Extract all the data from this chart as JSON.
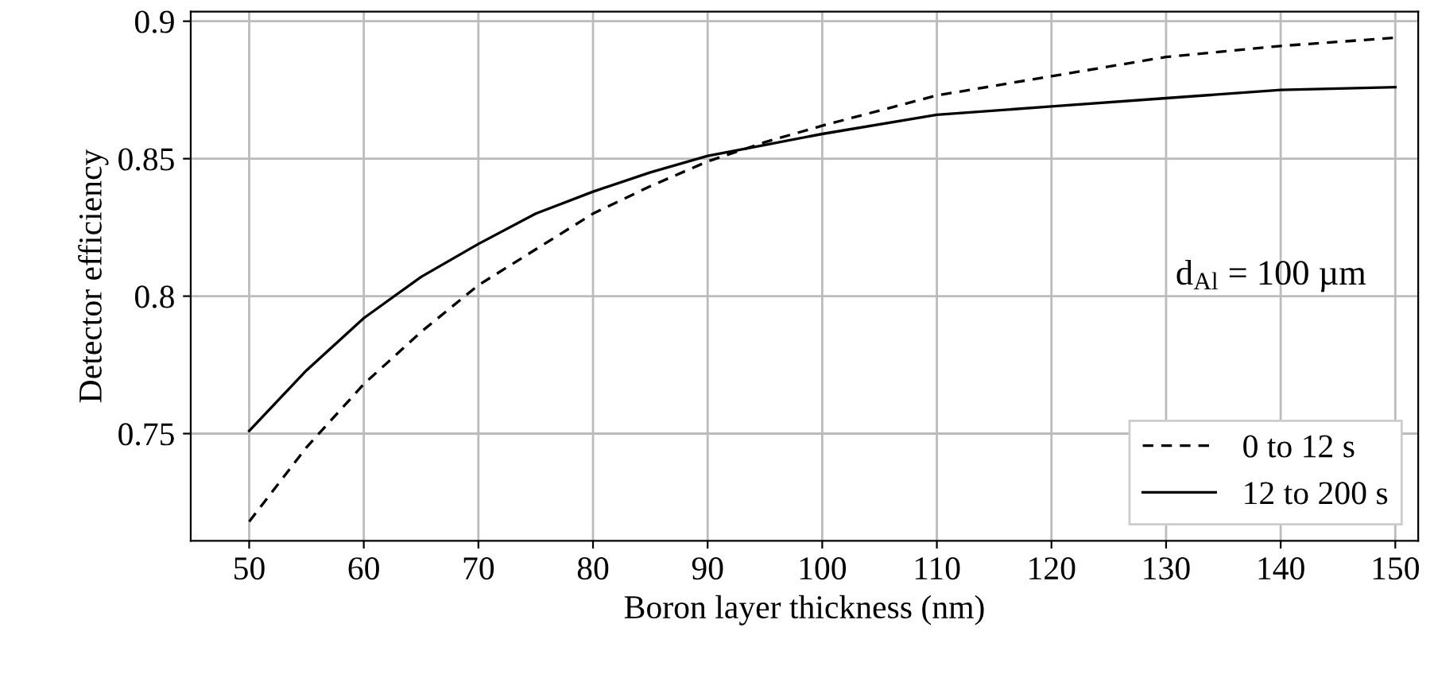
{
  "chart_data": {
    "type": "line",
    "xlabel": "Boron layer thickness (nm)",
    "ylabel": "Detector efficiency",
    "x": [
      50,
      55,
      60,
      65,
      70,
      75,
      80,
      85,
      90,
      95,
      100,
      110,
      120,
      130,
      140,
      150
    ],
    "series": [
      {
        "name": "0 to 12 s",
        "color": "#000000",
        "line_style": "dashed",
        "values": [
          0.718,
          0.745,
          0.768,
          0.787,
          0.804,
          0.817,
          0.83,
          0.84,
          0.849,
          0.856,
          0.862,
          0.873,
          0.88,
          0.887,
          0.891,
          0.894
        ]
      },
      {
        "name": "12 to 200 s",
        "color": "#000000",
        "line_style": "solid",
        "values": [
          0.751,
          0.773,
          0.792,
          0.807,
          0.819,
          0.83,
          0.838,
          0.845,
          0.851,
          0.855,
          0.859,
          0.866,
          0.869,
          0.872,
          0.875,
          0.876
        ]
      }
    ],
    "xlim": [
      44.9,
      152
    ],
    "ylim": [
      0.711,
      0.9035
    ],
    "xticks": [
      50,
      60,
      70,
      80,
      90,
      100,
      110,
      120,
      130,
      140,
      150
    ],
    "yticks": [
      {
        "value": 0.75,
        "label": "0.75"
      },
      {
        "value": 0.8,
        "label": "0.8"
      },
      {
        "value": 0.85,
        "label": "0.85"
      },
      {
        "value": 0.9,
        "label": "0.9"
      }
    ],
    "annotations": [
      "d$_{Al}$ = 100 µm"
    ],
    "grid": true,
    "legend": "bottom right",
    "marker": "none"
  }
}
